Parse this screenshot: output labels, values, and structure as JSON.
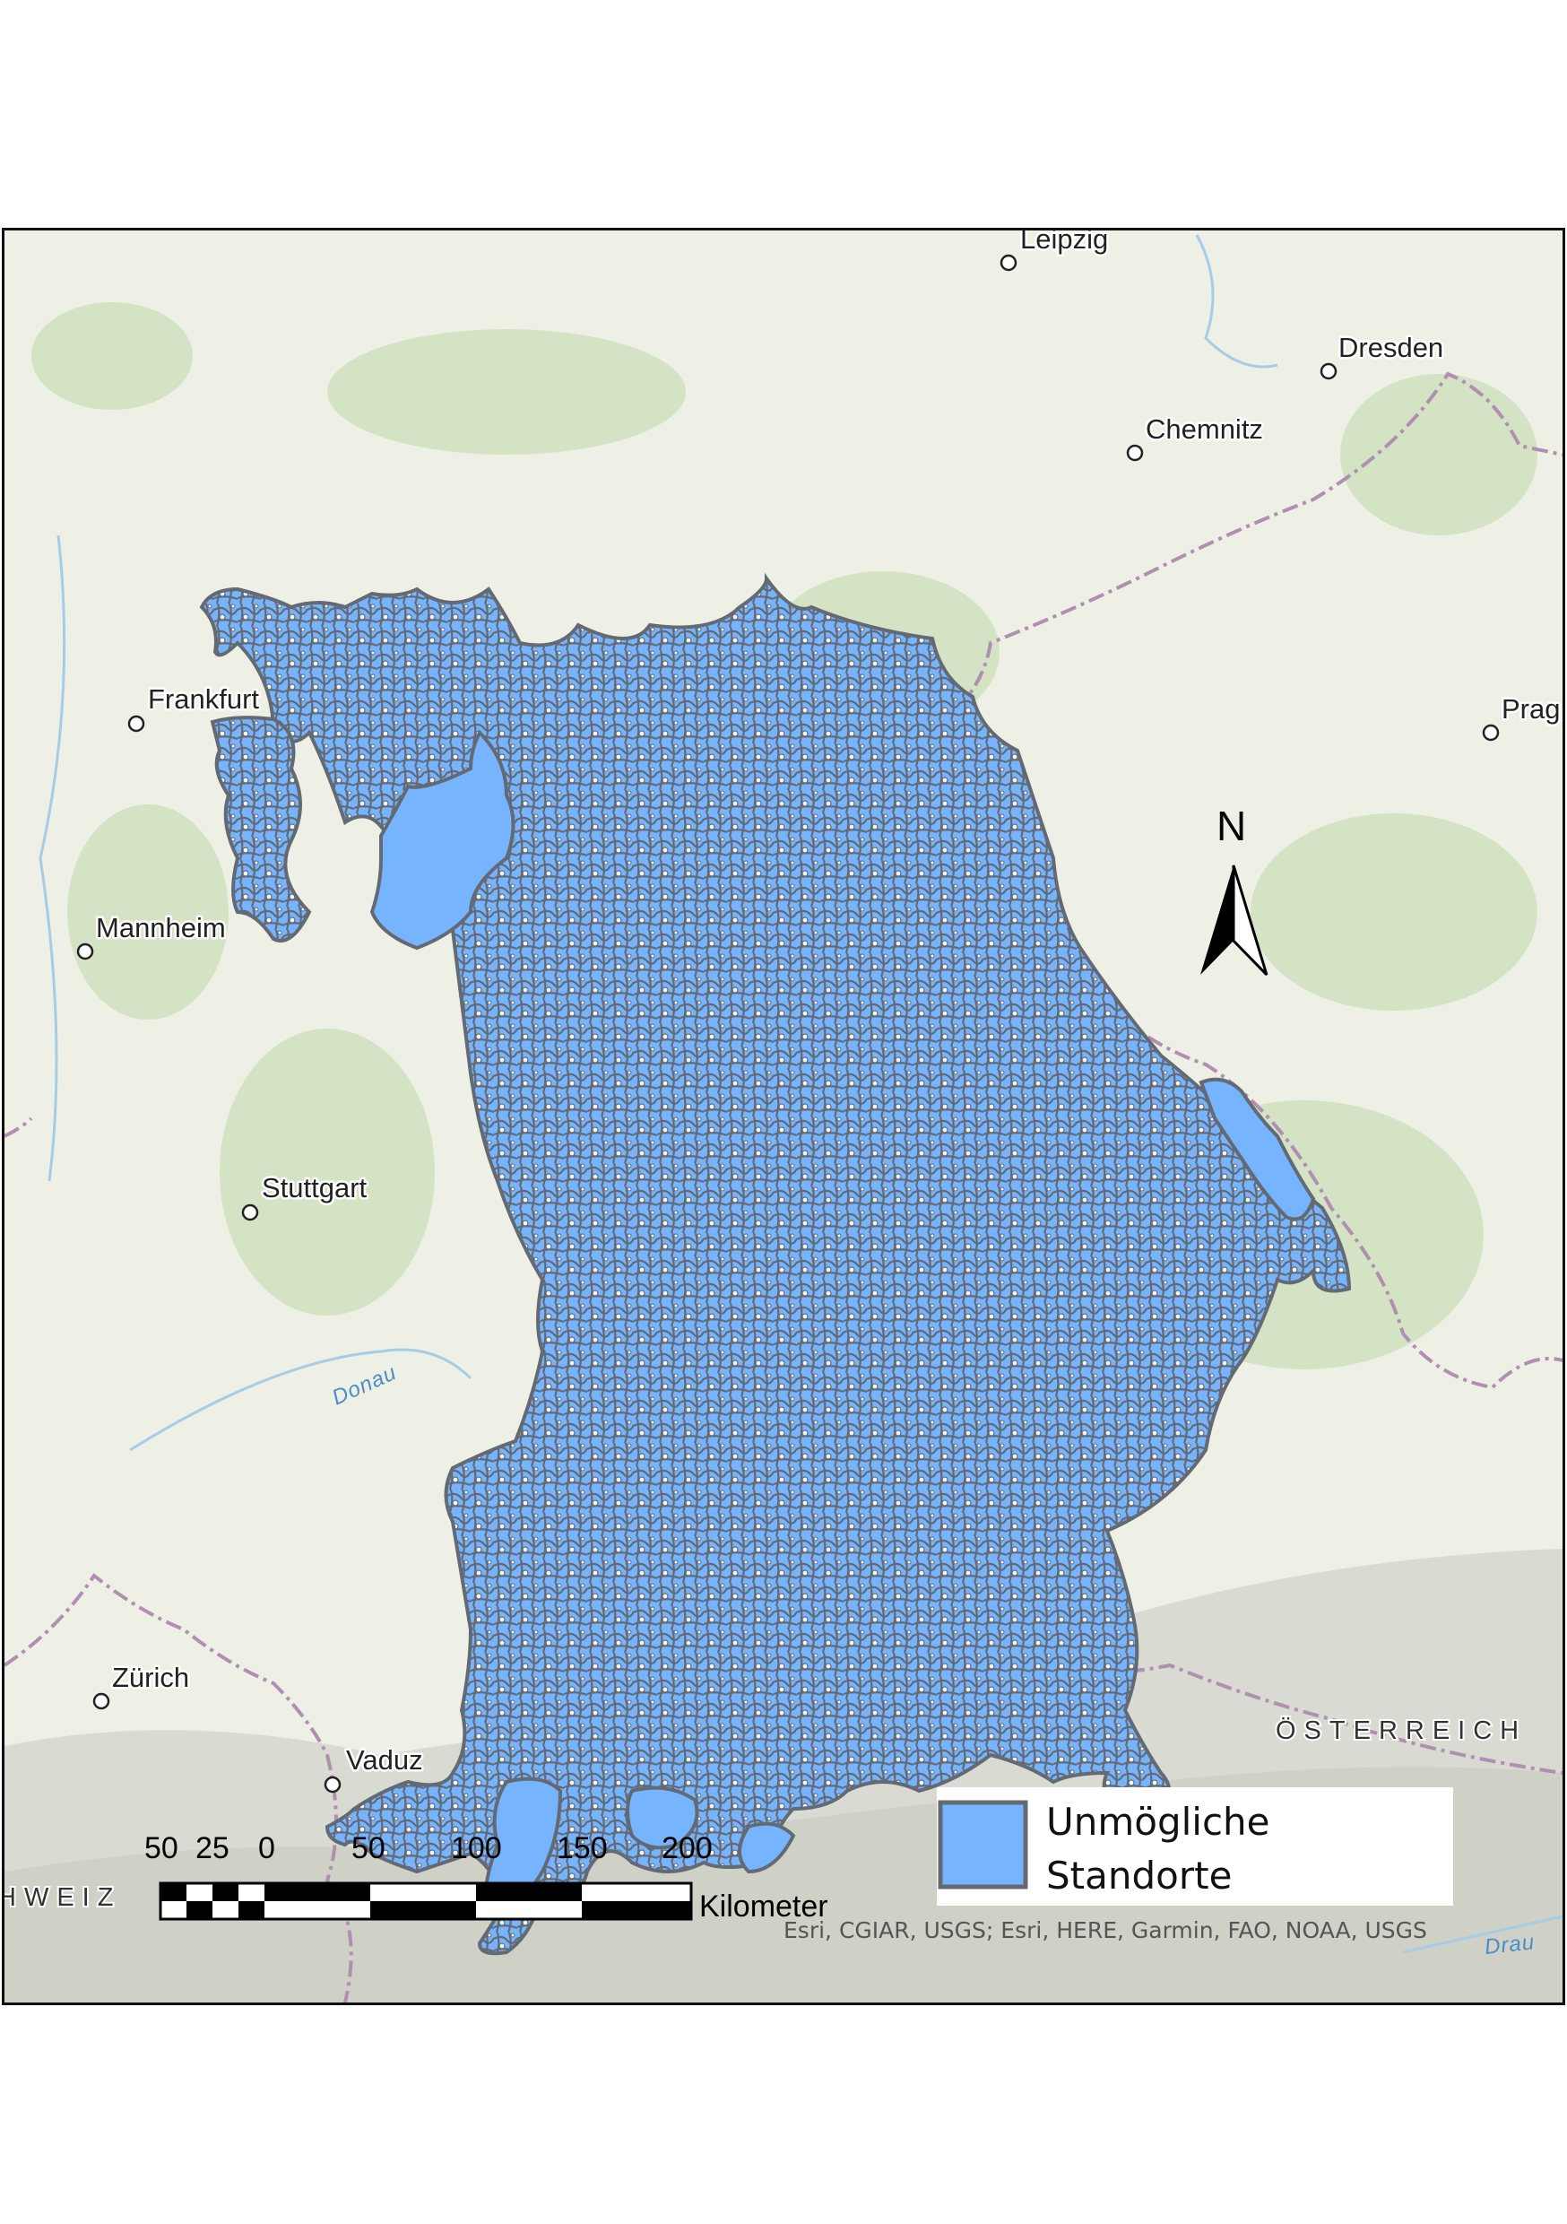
{
  "map": {
    "cities": [
      {
        "id": "leipzig",
        "name": "Leipzig"
      },
      {
        "id": "dresden",
        "name": "Dresden"
      },
      {
        "id": "chemnitz",
        "name": "Chemnitz"
      },
      {
        "id": "prag",
        "name": "Prag"
      },
      {
        "id": "frankfurt",
        "name": "Frankfurt"
      },
      {
        "id": "mannheim",
        "name": "Mannheim"
      },
      {
        "id": "stuttgart",
        "name": "Stuttgart"
      },
      {
        "id": "zurich",
        "name": "Zürich"
      },
      {
        "id": "vaduz",
        "name": "Vaduz"
      }
    ],
    "country_labels": {
      "oesterreich": "ÖSTERREICH",
      "schweiz": "HWEIZ"
    },
    "rivers": {
      "donau": "Donau",
      "drau": "Drau"
    },
    "colors": {
      "basemap": "#eef0e6",
      "forest": "#cfe1bf",
      "mountains": "#d7d9cf",
      "polygon_fill": "#76b4ff",
      "polygon_stroke": "#636a73",
      "border": "#b08fb0",
      "water": "#a8cbe8"
    }
  },
  "north_arrow": {
    "label": "N"
  },
  "scale_bar": {
    "ticks": [
      "50",
      "25",
      "0",
      "50",
      "100",
      "150",
      "200"
    ],
    "unit": "Kilometer"
  },
  "legend": {
    "line1": "Unmögliche",
    "line2": "Standorte"
  },
  "attribution": "Esri, CGIAR, USGS; Esri, HERE, Garmin, FAO, NOAA, USGS"
}
